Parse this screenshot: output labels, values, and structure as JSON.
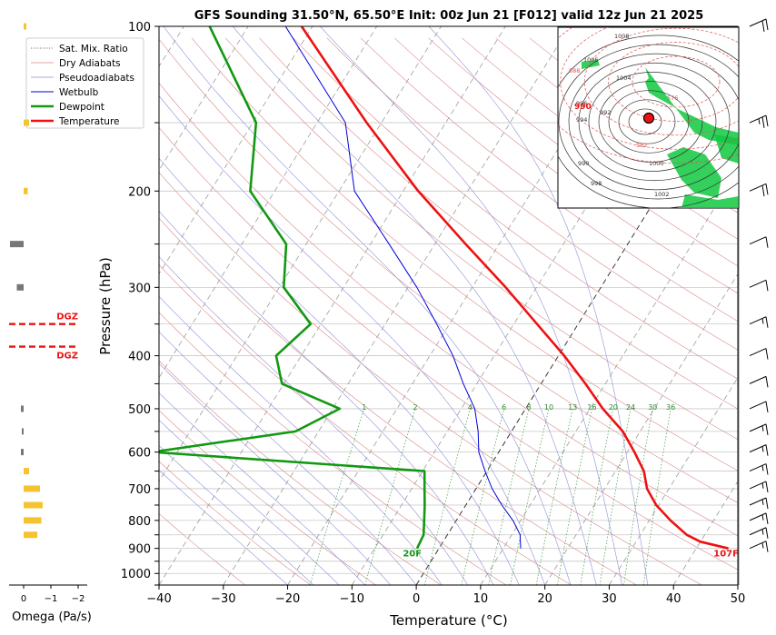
{
  "chart_data": {
    "type": "line",
    "title": "GFS Sounding 31.50°N, 65.50°E Init: 00z Jun 21 [F012] valid 12z Jun 21 2025",
    "xlabel": "Temperature (°C)",
    "ylabel": "Pressure (hPa)",
    "xlim": [
      -40,
      50
    ],
    "ylim": [
      1050,
      100
    ],
    "y_scale": "log",
    "grid": true,
    "legend_position": "top-left",
    "xticks": [
      "−40",
      "−30",
      "−20",
      "−10",
      "0",
      "10",
      "20",
      "30",
      "40",
      "50"
    ],
    "yticks": [
      "100",
      "200",
      "300",
      "400",
      "500",
      "600",
      "700",
      "800",
      "900",
      "1000"
    ],
    "legend": [
      "Sat. Mix. Ratio",
      "Dry Adiabats",
      "Pseudoadiabats",
      "Wetbulb",
      "Dewpoint",
      "Temperature"
    ],
    "mixing_ratio_labels": [
      "1",
      "2",
      "4",
      "6",
      "8",
      "10",
      "13",
      "16",
      "20",
      "24",
      "30",
      "36"
    ],
    "series": [
      {
        "name": "Temperature",
        "color": "#ee1111",
        "points": [
          {
            "p": 900,
            "t": 45.0
          },
          {
            "p": 875,
            "t": 40.0
          },
          {
            "p": 850,
            "t": 37.2
          },
          {
            "p": 800,
            "t": 33.3
          },
          {
            "p": 750,
            "t": 29.6
          },
          {
            "p": 700,
            "t": 26.6
          },
          {
            "p": 650,
            "t": 24.4
          },
          {
            "p": 600,
            "t": 21.1
          },
          {
            "p": 550,
            "t": 17.3
          },
          {
            "p": 500,
            "t": 12.0
          },
          {
            "p": 450,
            "t": 6.9
          },
          {
            "p": 400,
            "t": 0.9
          },
          {
            "p": 350,
            "t": -6.4
          },
          {
            "p": 300,
            "t": -14.8
          },
          {
            "p": 250,
            "t": -25.2
          },
          {
            "p": 200,
            "t": -37.7
          },
          {
            "p": 150,
            "t": -52.3
          },
          {
            "p": 100,
            "t": -71.7
          }
        ]
      },
      {
        "name": "Dewpoint",
        "color": "#119911",
        "points": [
          {
            "p": 900,
            "t": -3.4
          },
          {
            "p": 850,
            "t": -3.7
          },
          {
            "p": 800,
            "t": -5.0
          },
          {
            "p": 750,
            "t": -6.4
          },
          {
            "p": 700,
            "t": -8.0
          },
          {
            "p": 650,
            "t": -9.7
          },
          {
            "p": 600,
            "t": -53.9
          },
          {
            "p": 550,
            "t": -33.6
          },
          {
            "p": 500,
            "t": -28.9
          },
          {
            "p": 450,
            "t": -40.3
          },
          {
            "p": 400,
            "t": -43.9
          },
          {
            "p": 350,
            "t": -41.6
          },
          {
            "p": 300,
            "t": -49.3
          },
          {
            "p": 250,
            "t": -53.1
          },
          {
            "p": 200,
            "t": -63.8
          },
          {
            "p": 150,
            "t": -69.5
          },
          {
            "p": 100,
            "t": -86.0
          }
        ]
      },
      {
        "name": "Wetbulb",
        "color": "#0000dd",
        "points": [
          {
            "p": 900,
            "t": 12.7
          },
          {
            "p": 850,
            "t": 11.3
          },
          {
            "p": 800,
            "t": 8.8
          },
          {
            "p": 750,
            "t": 5.6
          },
          {
            "p": 700,
            "t": 2.5
          },
          {
            "p": 650,
            "t": -0.3
          },
          {
            "p": 600,
            "t": -3.1
          },
          {
            "p": 550,
            "t": -5.2
          },
          {
            "p": 500,
            "t": -7.9
          },
          {
            "p": 450,
            "t": -12.1
          },
          {
            "p": 400,
            "t": -16.4
          },
          {
            "p": 350,
            "t": -22.0
          },
          {
            "p": 300,
            "t": -28.6
          },
          {
            "p": 250,
            "t": -37.1
          },
          {
            "p": 200,
            "t": -47.6
          },
          {
            "p": 150,
            "t": -55.6
          },
          {
            "p": 100,
            "t": -74.2
          }
        ]
      }
    ],
    "annotations": [
      {
        "text": "107F",
        "color": "#ee1111",
        "p": 930,
        "t": 45.4
      },
      {
        "text": "20F",
        "color": "#119911",
        "p": 930,
        "t": -3.4
      }
    ],
    "omega": {
      "label": "Omega (Pa/s)",
      "ticks": [
        "0",
        "−1",
        "−2"
      ],
      "dgz_label": "DGZ",
      "dgz_pressures": [
        350,
        385
      ],
      "bars": [
        {
          "p": 100,
          "v": -0.1,
          "color": "#f4c430"
        },
        {
          "p": 150,
          "v": -0.2,
          "color": "#f4c430"
        },
        {
          "p": 200,
          "v": -0.15,
          "color": "#f4c430"
        },
        {
          "p": 250,
          "v": 0.5,
          "color": "#777777"
        },
        {
          "p": 300,
          "v": 0.25,
          "color": "#777777"
        },
        {
          "p": 500,
          "v": 0.1,
          "color": "#777777"
        },
        {
          "p": 550,
          "v": 0.05,
          "color": "#777777"
        },
        {
          "p": 600,
          "v": 0.1,
          "color": "#777777"
        },
        {
          "p": 650,
          "v": -0.2,
          "color": "#f4c430"
        },
        {
          "p": 700,
          "v": -0.6,
          "color": "#f4c430"
        },
        {
          "p": 750,
          "v": -0.7,
          "color": "#f4c430"
        },
        {
          "p": 800,
          "v": -0.65,
          "color": "#f4c430"
        },
        {
          "p": 850,
          "v": -0.5,
          "color": "#f4c430"
        }
      ]
    },
    "inset_map": {
      "location_marker": "31.50°N, 65.50°E",
      "contour_labels": [
        "1008",
        "1006",
        "1004",
        "1000",
        "998",
        "996",
        "994",
        "992",
        "990",
        "1002",
        "588",
        "576",
        "582"
      ],
      "highlight_label": "990"
    },
    "wind_barbs": [
      {
        "p": 100,
        "speed_kt": 20
      },
      {
        "p": 150,
        "speed_kt": 25
      },
      {
        "p": 200,
        "speed_kt": 20
      },
      {
        "p": 250,
        "speed_kt": 10
      },
      {
        "p": 300,
        "speed_kt": 10
      },
      {
        "p": 350,
        "speed_kt": 15
      },
      {
        "p": 400,
        "speed_kt": 10
      },
      {
        "p": 450,
        "speed_kt": 10
      },
      {
        "p": 500,
        "speed_kt": 10
      },
      {
        "p": 550,
        "speed_kt": 15
      },
      {
        "p": 600,
        "speed_kt": 15
      },
      {
        "p": 650,
        "speed_kt": 15
      },
      {
        "p": 700,
        "speed_kt": 15
      },
      {
        "p": 750,
        "speed_kt": 15
      },
      {
        "p": 800,
        "speed_kt": 15
      },
      {
        "p": 850,
        "speed_kt": 15
      },
      {
        "p": 900,
        "speed_kt": 15
      }
    ]
  }
}
